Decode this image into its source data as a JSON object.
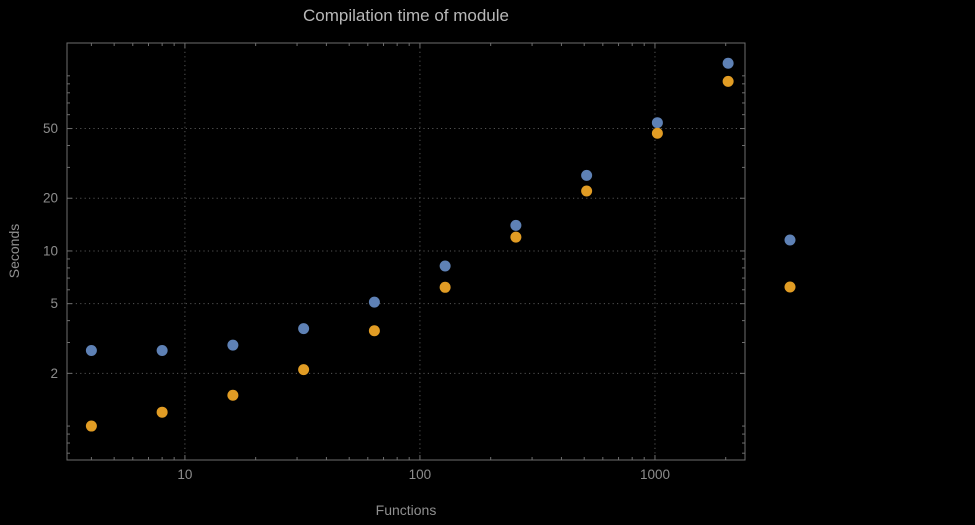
{
  "chart_data": {
    "type": "scatter",
    "title": "Compilation time of module",
    "xlabel": "Functions",
    "ylabel": "Seconds",
    "x_scale": "log",
    "y_scale": "log",
    "x": [
      4,
      8,
      16,
      32,
      64,
      128,
      256,
      512,
      1024,
      2048
    ],
    "series": [
      {
        "name": "blue",
        "color": "#5e81b5",
        "values": [
          2.7,
          2.7,
          2.9,
          3.6,
          5.1,
          8.2,
          14,
          27,
          54,
          118
        ]
      },
      {
        "name": "orange",
        "color": "#e19c24",
        "values": [
          1.0,
          1.2,
          1.5,
          2.1,
          3.5,
          6.2,
          12,
          22,
          47,
          93
        ]
      }
    ],
    "x_ticks": [
      10,
      100,
      1000
    ],
    "y_ticks": [
      2,
      5,
      10,
      20,
      50
    ],
    "xlim": [
      3.15,
      2416
    ],
    "ylim": [
      0.64,
      154
    ],
    "grid": true,
    "legend_position": "right-outside",
    "colors": {
      "background": "#000000",
      "frame": "#6e6e6e",
      "gridline": "#545454",
      "tick_text": "#8d8d8d",
      "title_text": "#b8b8b8",
      "series_blue": "#5e81b5",
      "series_orange": "#e19c24"
    }
  }
}
